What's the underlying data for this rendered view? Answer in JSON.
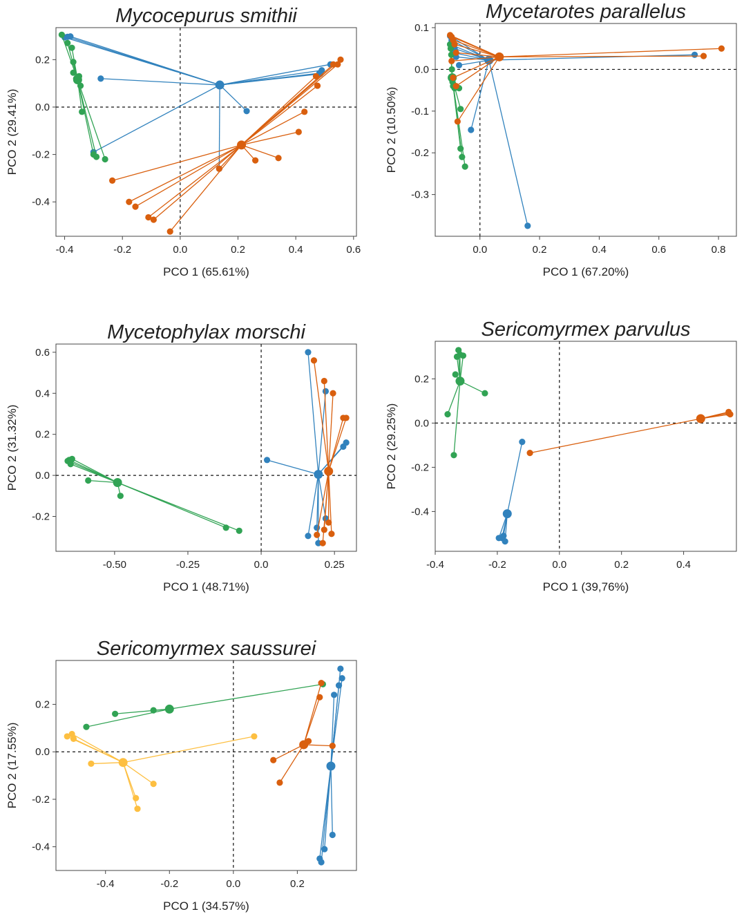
{
  "chart_data": [
    {
      "type": "scatter",
      "title": "Mycocepurus smithii",
      "xlabel": "PCO 1 (65.61%)",
      "ylabel": "PCO 2 (29.41%)",
      "xlim": [
        -0.43,
        0.61
      ],
      "ylim": [
        -0.545,
        0.335
      ],
      "xticks": [
        -0.4,
        -0.2,
        0.0,
        0.2,
        0.4,
        0.6
      ],
      "xtick_labels": [
        "-0.4",
        "-0.2",
        "0.0",
        "0.2",
        "0.4",
        "0.6"
      ],
      "yticks": [
        -0.4,
        -0.2,
        0.0,
        0.2
      ],
      "ytick_labels": [
        "-0.4",
        "-0.2",
        "0.0",
        "0.2"
      ],
      "grid": false,
      "series": [
        {
          "color": "#3182bd",
          "centroid": [
            0.137,
            0.093
          ],
          "points": [
            [
              -0.38,
              0.298
            ],
            [
              -0.39,
              0.296
            ],
            [
              -0.4,
              0.294
            ],
            [
              -0.275,
              0.12
            ],
            [
              -0.3,
              -0.19
            ],
            [
              0.23,
              -0.017
            ],
            [
              0.135,
              -0.26
            ],
            [
              0.482,
              0.143
            ],
            [
              0.52,
              0.18
            ],
            [
              0.49,
              0.155
            ],
            [
              0.485,
              0.14
            ]
          ]
        },
        {
          "color": "#31a354",
          "centroid": [
            -0.355,
            0.115
          ],
          "points": [
            [
              -0.41,
              0.305
            ],
            [
              -0.39,
              0.27
            ],
            [
              -0.375,
              0.25
            ],
            [
              -0.37,
              0.19
            ],
            [
              -0.37,
              0.145
            ],
            [
              -0.36,
              0.12
            ],
            [
              -0.35,
              0.13
            ],
            [
              -0.345,
              0.09
            ],
            [
              -0.34,
              -0.02
            ],
            [
              -0.3,
              -0.2
            ],
            [
              -0.29,
              -0.21
            ],
            [
              -0.26,
              -0.22
            ]
          ]
        },
        {
          "color": "#d95f0e",
          "centroid": [
            0.212,
            -0.16
          ],
          "points": [
            [
              -0.235,
              -0.31
            ],
            [
              -0.177,
              -0.4
            ],
            [
              -0.155,
              -0.42
            ],
            [
              -0.11,
              -0.465
            ],
            [
              -0.092,
              -0.475
            ],
            [
              -0.035,
              -0.525
            ],
            [
              0.135,
              -0.26
            ],
            [
              0.26,
              -0.225
            ],
            [
              0.34,
              -0.215
            ],
            [
              0.41,
              -0.105
            ],
            [
              0.43,
              -0.02
            ],
            [
              0.475,
              0.09
            ],
            [
              0.47,
              0.13
            ],
            [
              0.53,
              0.18
            ],
            [
              0.545,
              0.18
            ],
            [
              0.555,
              0.2
            ]
          ]
        }
      ]
    },
    {
      "type": "scatter",
      "title": "Mycetarotes parallelus",
      "xlabel": "PCO 1 (67.20%)",
      "ylabel": "PCO 2 (10.50%)",
      "xlim": [
        -0.15,
        0.86
      ],
      "ylim": [
        -0.4,
        0.11
      ],
      "xticks": [
        0.0,
        0.2,
        0.4,
        0.6,
        0.8
      ],
      "xtick_labels": [
        "0.0",
        "0.2",
        "0.4",
        "0.6",
        "0.8"
      ],
      "yticks": [
        -0.3,
        -0.2,
        -0.1,
        0.0,
        0.1
      ],
      "ytick_labels": [
        "-0.3",
        "-0.2",
        "-0.1",
        "0.0",
        "0.1"
      ],
      "grid": false,
      "series": [
        {
          "color": "#3182bd",
          "centroid": [
            0.03,
            0.022
          ],
          "points": [
            [
              -0.1,
              0.08
            ],
            [
              -0.095,
              0.07
            ],
            [
              -0.1,
              0.06
            ],
            [
              -0.09,
              0.04
            ],
            [
              -0.085,
              0.05
            ],
            [
              -0.08,
              0.03
            ],
            [
              -0.07,
              0.01
            ],
            [
              -0.03,
              -0.145
            ],
            [
              0.16,
              -0.375
            ],
            [
              0.72,
              0.035
            ]
          ]
        },
        {
          "color": "#31a354",
          "centroid": [
            -0.093,
            -0.02
          ],
          "points": [
            [
              -0.1,
              0.06
            ],
            [
              -0.098,
              0.05
            ],
            [
              -0.096,
              0.035
            ],
            [
              -0.094,
              0.0
            ],
            [
              -0.092,
              -0.03
            ],
            [
              -0.09,
              -0.04
            ],
            [
              -0.085,
              -0.045
            ],
            [
              -0.07,
              -0.045
            ],
            [
              -0.065,
              -0.095
            ],
            [
              -0.065,
              -0.19
            ],
            [
              -0.06,
              -0.21
            ],
            [
              -0.05,
              -0.233
            ]
          ]
        },
        {
          "color": "#d95f0e",
          "centroid": [
            0.065,
            0.03
          ],
          "points": [
            [
              -0.1,
              0.082
            ],
            [
              -0.095,
              0.078
            ],
            [
              -0.09,
              0.07
            ],
            [
              -0.085,
              0.06
            ],
            [
              -0.08,
              0.04
            ],
            [
              -0.095,
              0.02
            ],
            [
              -0.09,
              -0.02
            ],
            [
              -0.08,
              -0.04
            ],
            [
              -0.075,
              -0.125
            ],
            [
              0.75,
              0.032
            ],
            [
              0.81,
              0.05
            ]
          ]
        }
      ]
    },
    {
      "type": "scatter",
      "title": "Mycetophylax morschi",
      "xlabel": "PCO 1 (48.71%)",
      "ylabel": "PCO 2 (31.32%)",
      "xlim": [
        -0.7,
        0.325
      ],
      "ylim": [
        -0.37,
        0.64
      ],
      "xticks": [
        -0.5,
        -0.25,
        0.0,
        0.25
      ],
      "xtick_labels": [
        "-0.50",
        "-0.25",
        "0.0",
        "0.25"
      ],
      "yticks": [
        -0.2,
        0.0,
        0.2,
        0.4,
        0.6
      ],
      "ytick_labels": [
        "-0.2",
        "0.0",
        "0.2",
        "0.4",
        "0.6"
      ],
      "grid": false,
      "series": [
        {
          "color": "#3182bd",
          "centroid": [
            0.195,
            0.005
          ],
          "points": [
            [
              0.02,
              0.075
            ],
            [
              0.16,
              0.6
            ],
            [
              0.22,
              0.41
            ],
            [
              0.28,
              0.14
            ],
            [
              0.29,
              0.16
            ],
            [
              0.16,
              -0.295
            ],
            [
              0.19,
              -0.255
            ],
            [
              0.195,
              -0.33
            ],
            [
              0.22,
              -0.21
            ]
          ]
        },
        {
          "color": "#31a354",
          "centroid": [
            -0.49,
            -0.035
          ],
          "points": [
            [
              -0.66,
              0.07
            ],
            [
              -0.655,
              0.075
            ],
            [
              -0.65,
              0.055
            ],
            [
              -0.645,
              0.08
            ],
            [
              -0.59,
              -0.025
            ],
            [
              -0.48,
              -0.1
            ],
            [
              -0.12,
              -0.255
            ],
            [
              -0.075,
              -0.27
            ]
          ]
        },
        {
          "color": "#d95f0e",
          "centroid": [
            0.23,
            0.02
          ],
          "points": [
            [
              0.18,
              0.56
            ],
            [
              0.215,
              0.46
            ],
            [
              0.245,
              0.4
            ],
            [
              0.28,
              0.28
            ],
            [
              0.29,
              0.28
            ],
            [
              0.19,
              -0.29
            ],
            [
              0.215,
              -0.265
            ],
            [
              0.23,
              -0.23
            ],
            [
              0.24,
              -0.285
            ],
            [
              0.21,
              -0.33
            ]
          ]
        }
      ]
    },
    {
      "type": "scatter",
      "title": "Sericomyrmex parvulus",
      "xlabel": "PCO 1 (39,76%)",
      "ylabel": "PCO 2 (29.25%)",
      "xlim": [
        -0.4,
        0.57
      ],
      "ylim": [
        -0.58,
        0.37
      ],
      "xticks": [
        -0.4,
        -0.2,
        0.0,
        0.2,
        0.4
      ],
      "xtick_labels": [
        "-0.4",
        "-0.2",
        "0.0",
        "0.2",
        "0.4"
      ],
      "yticks": [
        -0.4,
        -0.2,
        0.0,
        0.2
      ],
      "ytick_labels": [
        "-0.4",
        "-0.2",
        "0.0",
        "0.2"
      ],
      "grid": false,
      "series": [
        {
          "color": "#3182bd",
          "centroid": [
            -0.168,
            -0.41
          ],
          "points": [
            [
              -0.12,
              -0.085
            ],
            [
              -0.195,
              -0.52
            ],
            [
              -0.185,
              -0.52
            ],
            [
              -0.175,
              -0.535
            ],
            [
              -0.18,
              -0.51
            ]
          ]
        },
        {
          "color": "#31a354",
          "centroid": [
            -0.32,
            0.19
          ],
          "points": [
            [
              -0.36,
              0.04
            ],
            [
              -0.34,
              -0.145
            ],
            [
              -0.335,
              0.22
            ],
            [
              -0.325,
              0.33
            ],
            [
              -0.32,
              0.31
            ],
            [
              -0.31,
              0.305
            ],
            [
              -0.24,
              0.135
            ],
            [
              -0.33,
              0.3
            ]
          ]
        },
        {
          "color": "#d95f0e",
          "centroid": [
            0.455,
            0.02
          ],
          "points": [
            [
              -0.095,
              -0.135
            ],
            [
              0.545,
              0.05
            ],
            [
              0.55,
              0.04
            ],
            [
              0.545,
              0.045
            ]
          ]
        }
      ]
    },
    {
      "type": "scatter",
      "title": "Sericomyrmex saussurei",
      "xlabel": "PCO 1 (34.57%)",
      "ylabel": "PCO 2 (17.55%)",
      "xlim": [
        -0.555,
        0.385
      ],
      "ylim": [
        -0.5,
        0.385
      ],
      "xticks": [
        -0.4,
        -0.2,
        0.0,
        0.2
      ],
      "xtick_labels": [
        "-0.4",
        "-0.2",
        "0.0",
        "0.2"
      ],
      "yticks": [
        -0.4,
        -0.2,
        0.0,
        0.2
      ],
      "ytick_labels": [
        "-0.4",
        "-0.2",
        "0.0",
        "0.2"
      ],
      "grid": false,
      "series": [
        {
          "color": "#3182bd",
          "centroid": [
            0.305,
            -0.06
          ],
          "points": [
            [
              0.27,
              -0.45
            ],
            [
              0.275,
              -0.465
            ],
            [
              0.285,
              -0.41
            ],
            [
              0.31,
              -0.35
            ],
            [
              0.315,
              0.24
            ],
            [
              0.33,
              0.28
            ],
            [
              0.335,
              0.35
            ],
            [
              0.34,
              0.31
            ]
          ]
        },
        {
          "color": "#31a354",
          "centroid": [
            -0.2,
            0.18
          ],
          "points": [
            [
              -0.46,
              0.105
            ],
            [
              -0.37,
              0.16
            ],
            [
              -0.25,
              0.175
            ],
            [
              0.28,
              0.285
            ]
          ]
        },
        {
          "color": "#d95f0e",
          "centroid": [
            0.22,
            0.03
          ],
          "points": [
            [
              0.125,
              -0.035
            ],
            [
              0.145,
              -0.13
            ],
            [
              0.235,
              0.045
            ],
            [
              0.27,
              0.23
            ],
            [
              0.31,
              0.025
            ],
            [
              0.275,
              0.29
            ]
          ]
        },
        {
          "color": "#fdbf41",
          "centroid": [
            -0.345,
            -0.045
          ],
          "points": [
            [
              -0.52,
              0.065
            ],
            [
              -0.505,
              0.075
            ],
            [
              -0.5,
              0.055
            ],
            [
              -0.445,
              -0.05
            ],
            [
              -0.305,
              -0.195
            ],
            [
              -0.3,
              -0.24
            ],
            [
              -0.25,
              -0.135
            ],
            [
              0.065,
              0.065
            ]
          ]
        }
      ]
    }
  ]
}
